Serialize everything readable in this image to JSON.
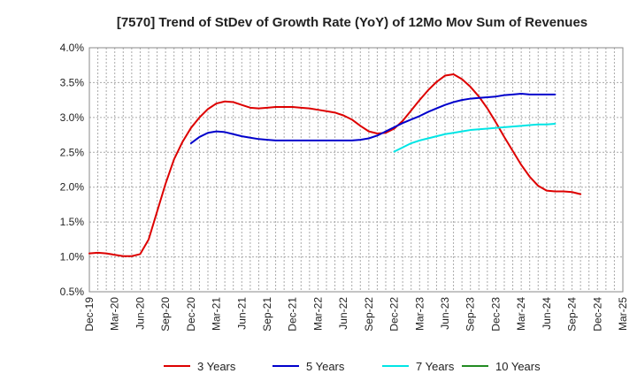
{
  "chart_data": {
    "type": "line",
    "title": "[7570]  Trend of StDev of Growth Rate (YoY) of 12Mo Mov Sum of Revenues",
    "xlabel": "",
    "ylabel": "",
    "ylim": [
      0.5,
      4.0
    ],
    "y_ticks": [
      0.5,
      1.0,
      1.5,
      2.0,
      2.5,
      3.0,
      3.5,
      4.0
    ],
    "y_tick_labels": [
      "0.5%",
      "1.0%",
      "1.5%",
      "2.0%",
      "2.5%",
      "3.0%",
      "3.5%",
      "4.0%"
    ],
    "x_tick_labels": [
      "Dec-19",
      "Mar-20",
      "Jun-20",
      "Sep-20",
      "Dec-20",
      "Mar-21",
      "Jun-21",
      "Sep-21",
      "Dec-21",
      "Mar-22",
      "Jun-22",
      "Sep-22",
      "Dec-22",
      "Mar-23",
      "Jun-23",
      "Sep-23",
      "Dec-23",
      "Mar-24",
      "Jun-24",
      "Sep-24",
      "Dec-24",
      "Mar-25"
    ],
    "x_range_months": [
      0,
      63
    ],
    "grid": true,
    "legend_position": "bottom",
    "series": [
      {
        "name": "3 Years",
        "color": "#dd0000",
        "points": [
          [
            0,
            1.05
          ],
          [
            1,
            1.06
          ],
          [
            2,
            1.05
          ],
          [
            3,
            1.03
          ],
          [
            4,
            1.01
          ],
          [
            5,
            1.01
          ],
          [
            6,
            1.04
          ],
          [
            7,
            1.25
          ],
          [
            8,
            1.65
          ],
          [
            9,
            2.05
          ],
          [
            10,
            2.4
          ],
          [
            11,
            2.65
          ],
          [
            12,
            2.85
          ],
          [
            13,
            3.0
          ],
          [
            14,
            3.12
          ],
          [
            15,
            3.2
          ],
          [
            16,
            3.23
          ],
          [
            17,
            3.22
          ],
          [
            18,
            3.18
          ],
          [
            19,
            3.14
          ],
          [
            20,
            3.13
          ],
          [
            21,
            3.14
          ],
          [
            22,
            3.15
          ],
          [
            23,
            3.15
          ],
          [
            24,
            3.15
          ],
          [
            25,
            3.14
          ],
          [
            26,
            3.13
          ],
          [
            27,
            3.11
          ],
          [
            28,
            3.09
          ],
          [
            29,
            3.07
          ],
          [
            30,
            3.03
          ],
          [
            31,
            2.97
          ],
          [
            32,
            2.88
          ],
          [
            33,
            2.8
          ],
          [
            34,
            2.77
          ],
          [
            35,
            2.78
          ],
          [
            36,
            2.84
          ],
          [
            37,
            2.95
          ],
          [
            38,
            3.1
          ],
          [
            39,
            3.25
          ],
          [
            40,
            3.39
          ],
          [
            41,
            3.51
          ],
          [
            42,
            3.6
          ],
          [
            43,
            3.62
          ],
          [
            44,
            3.55
          ],
          [
            45,
            3.44
          ],
          [
            46,
            3.3
          ],
          [
            47,
            3.13
          ],
          [
            48,
            2.93
          ],
          [
            49,
            2.72
          ],
          [
            50,
            2.52
          ],
          [
            51,
            2.32
          ],
          [
            52,
            2.15
          ],
          [
            53,
            2.02
          ],
          [
            54,
            1.95
          ],
          [
            55,
            1.94
          ],
          [
            56,
            1.94
          ],
          [
            57,
            1.93
          ],
          [
            58,
            1.9
          ]
        ]
      },
      {
        "name": "5 Years",
        "color": "#0000cc",
        "points": [
          [
            12,
            2.63
          ],
          [
            13,
            2.72
          ],
          [
            14,
            2.78
          ],
          [
            15,
            2.8
          ],
          [
            16,
            2.79
          ],
          [
            17,
            2.76
          ],
          [
            18,
            2.73
          ],
          [
            19,
            2.71
          ],
          [
            20,
            2.69
          ],
          [
            21,
            2.68
          ],
          [
            22,
            2.67
          ],
          [
            23,
            2.67
          ],
          [
            24,
            2.67
          ],
          [
            25,
            2.67
          ],
          [
            26,
            2.67
          ],
          [
            27,
            2.67
          ],
          [
            28,
            2.67
          ],
          [
            29,
            2.67
          ],
          [
            30,
            2.67
          ],
          [
            31,
            2.67
          ],
          [
            32,
            2.68
          ],
          [
            33,
            2.7
          ],
          [
            34,
            2.74
          ],
          [
            35,
            2.8
          ],
          [
            36,
            2.86
          ],
          [
            37,
            2.92
          ],
          [
            38,
            2.97
          ],
          [
            39,
            3.02
          ],
          [
            40,
            3.08
          ],
          [
            41,
            3.13
          ],
          [
            42,
            3.18
          ],
          [
            43,
            3.22
          ],
          [
            44,
            3.25
          ],
          [
            45,
            3.27
          ],
          [
            46,
            3.28
          ],
          [
            47,
            3.29
          ],
          [
            48,
            3.3
          ],
          [
            49,
            3.32
          ],
          [
            50,
            3.33
          ],
          [
            51,
            3.34
          ],
          [
            52,
            3.33
          ],
          [
            53,
            3.33
          ],
          [
            54,
            3.33
          ],
          [
            55,
            3.33
          ]
        ]
      },
      {
        "name": "7 Years",
        "color": "#00e5e5",
        "points": [
          [
            36,
            2.51
          ],
          [
            37,
            2.57
          ],
          [
            38,
            2.63
          ],
          [
            39,
            2.67
          ],
          [
            40,
            2.7
          ],
          [
            41,
            2.73
          ],
          [
            42,
            2.76
          ],
          [
            43,
            2.78
          ],
          [
            44,
            2.8
          ],
          [
            45,
            2.82
          ],
          [
            46,
            2.83
          ],
          [
            47,
            2.84
          ],
          [
            48,
            2.85
          ],
          [
            49,
            2.86
          ],
          [
            50,
            2.87
          ],
          [
            51,
            2.88
          ],
          [
            52,
            2.89
          ],
          [
            53,
            2.9
          ],
          [
            54,
            2.9
          ],
          [
            55,
            2.91
          ]
        ]
      },
      {
        "name": "10 Years",
        "color": "#228b22",
        "points": []
      }
    ]
  }
}
